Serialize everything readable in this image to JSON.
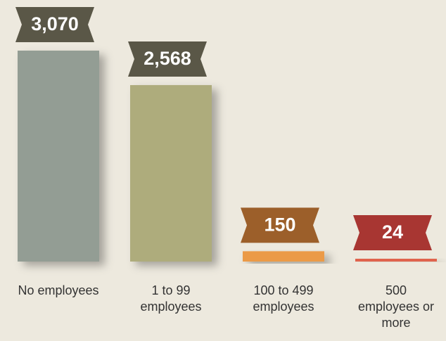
{
  "chart_data": {
    "type": "bar",
    "categories": [
      "No employees",
      "1 to 99 employees",
      "100 to 499 employees",
      "500 employees or more"
    ],
    "values": [
      3070,
      2568,
      150,
      24
    ],
    "value_labels": [
      "3,070",
      "2,568",
      "150",
      "24"
    ],
    "colors": [
      "#939d94",
      "#aeac7c",
      "#eb9a46",
      "#e0644e"
    ],
    "label_colors": [
      "#5a5747",
      "#5a5747",
      "#9c5f2a",
      "#a83632"
    ]
  }
}
